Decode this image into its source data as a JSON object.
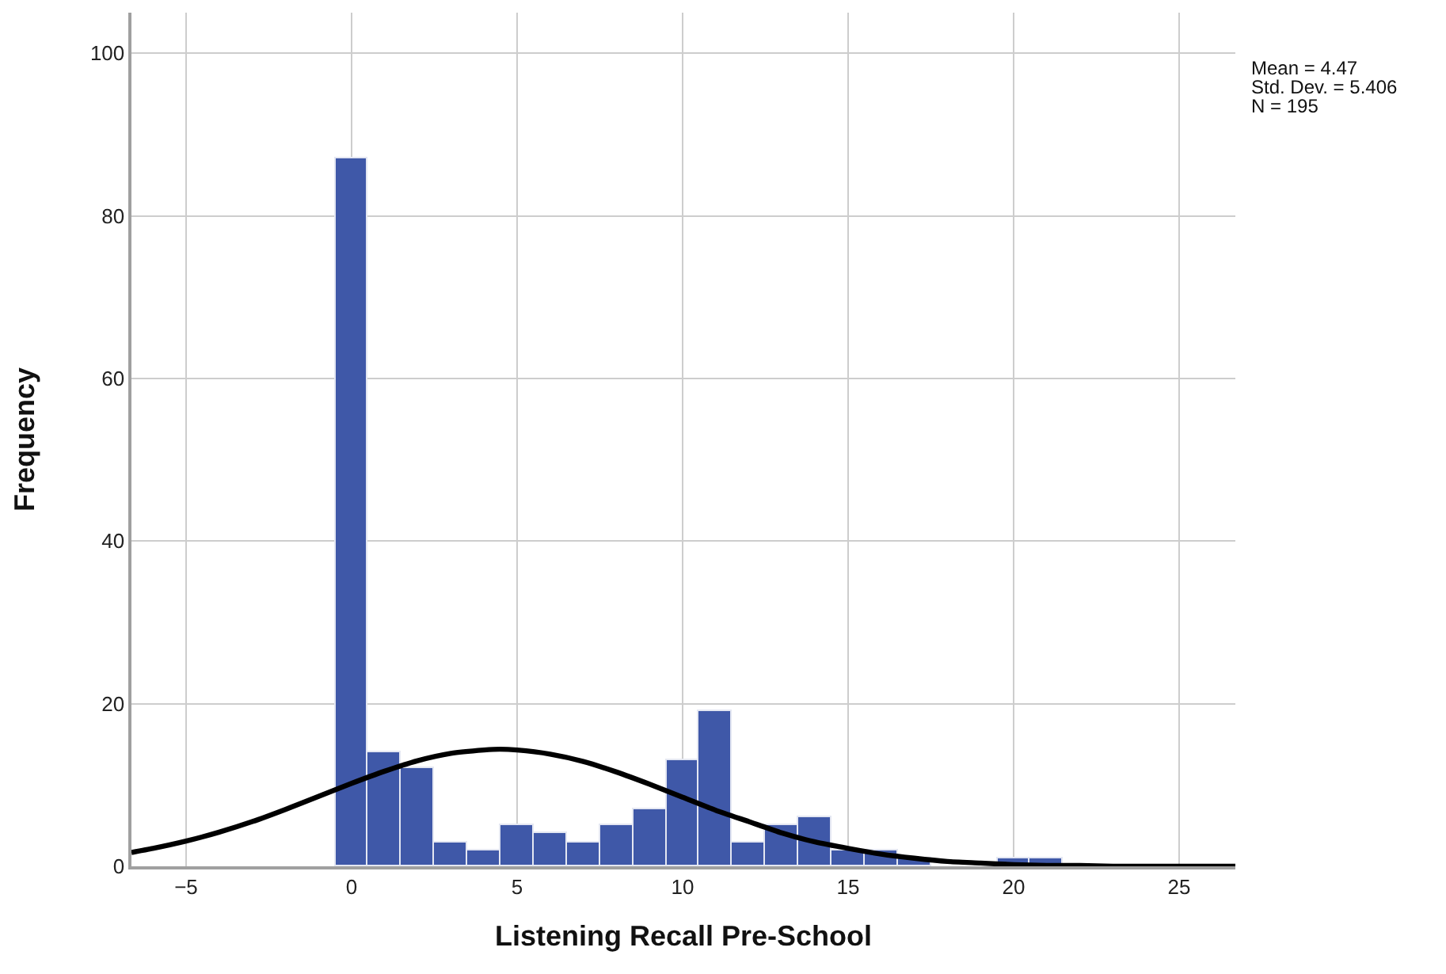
{
  "chart_data": {
    "type": "histogram",
    "xlabel": "Listening Recall Pre-School",
    "ylabel": "Frequency",
    "annotations": [
      "Mean = 4.47",
      "Std. Dev. = 5.406",
      "N = 195"
    ],
    "bins": [
      -0.5,
      0.5,
      1.5,
      2.5,
      3.5,
      4.5,
      5.5,
      6.5,
      7.5,
      8.5,
      9.5,
      10.5,
      11.5,
      12.5,
      13.5,
      14.5,
      15.5,
      16.5,
      17.5,
      18.5,
      19.5,
      20.5,
      21.5
    ],
    "values": [
      87,
      14,
      12,
      3,
      2,
      5,
      4,
      3,
      5,
      7,
      13,
      19,
      3,
      5,
      6,
      2,
      2,
      1,
      0,
      0,
      1,
      1
    ],
    "color": "#3f58a8",
    "series": [
      {
        "type": "line",
        "color": "#000000",
        "x": [
          -6.65,
          -6,
          -5,
          -4,
          -3,
          -2,
          -1,
          0,
          1,
          2,
          3,
          4,
          4.47,
          5,
          6,
          7,
          8,
          9,
          10,
          11,
          12,
          13,
          14,
          15,
          16,
          17,
          18,
          19,
          20,
          21,
          22,
          23,
          24,
          25,
          26,
          26.7
        ],
        "values": [
          1.7,
          2.2,
          3.1,
          4.2,
          5.5,
          7.0,
          8.6,
          10.2,
          11.7,
          13.0,
          13.9,
          14.3,
          14.4,
          14.3,
          13.8,
          12.9,
          11.6,
          10.1,
          8.5,
          6.9,
          5.5,
          4.1,
          3.0,
          2.2,
          1.5,
          1.0,
          0.6,
          0.4,
          0.2,
          0.1,
          0.1,
          0.0,
          0.0,
          0.0,
          0.0,
          0.0
        ]
      }
    ],
    "xlim": [
      -6.65,
      26.7
    ],
    "ylim": [
      0,
      105
    ],
    "xticks": [
      {
        "value": -5,
        "label": "−5"
      },
      0,
      5,
      10,
      15,
      20,
      25
    ],
    "yticks": [
      0,
      20,
      40,
      60,
      80,
      100
    ],
    "grid": true
  }
}
